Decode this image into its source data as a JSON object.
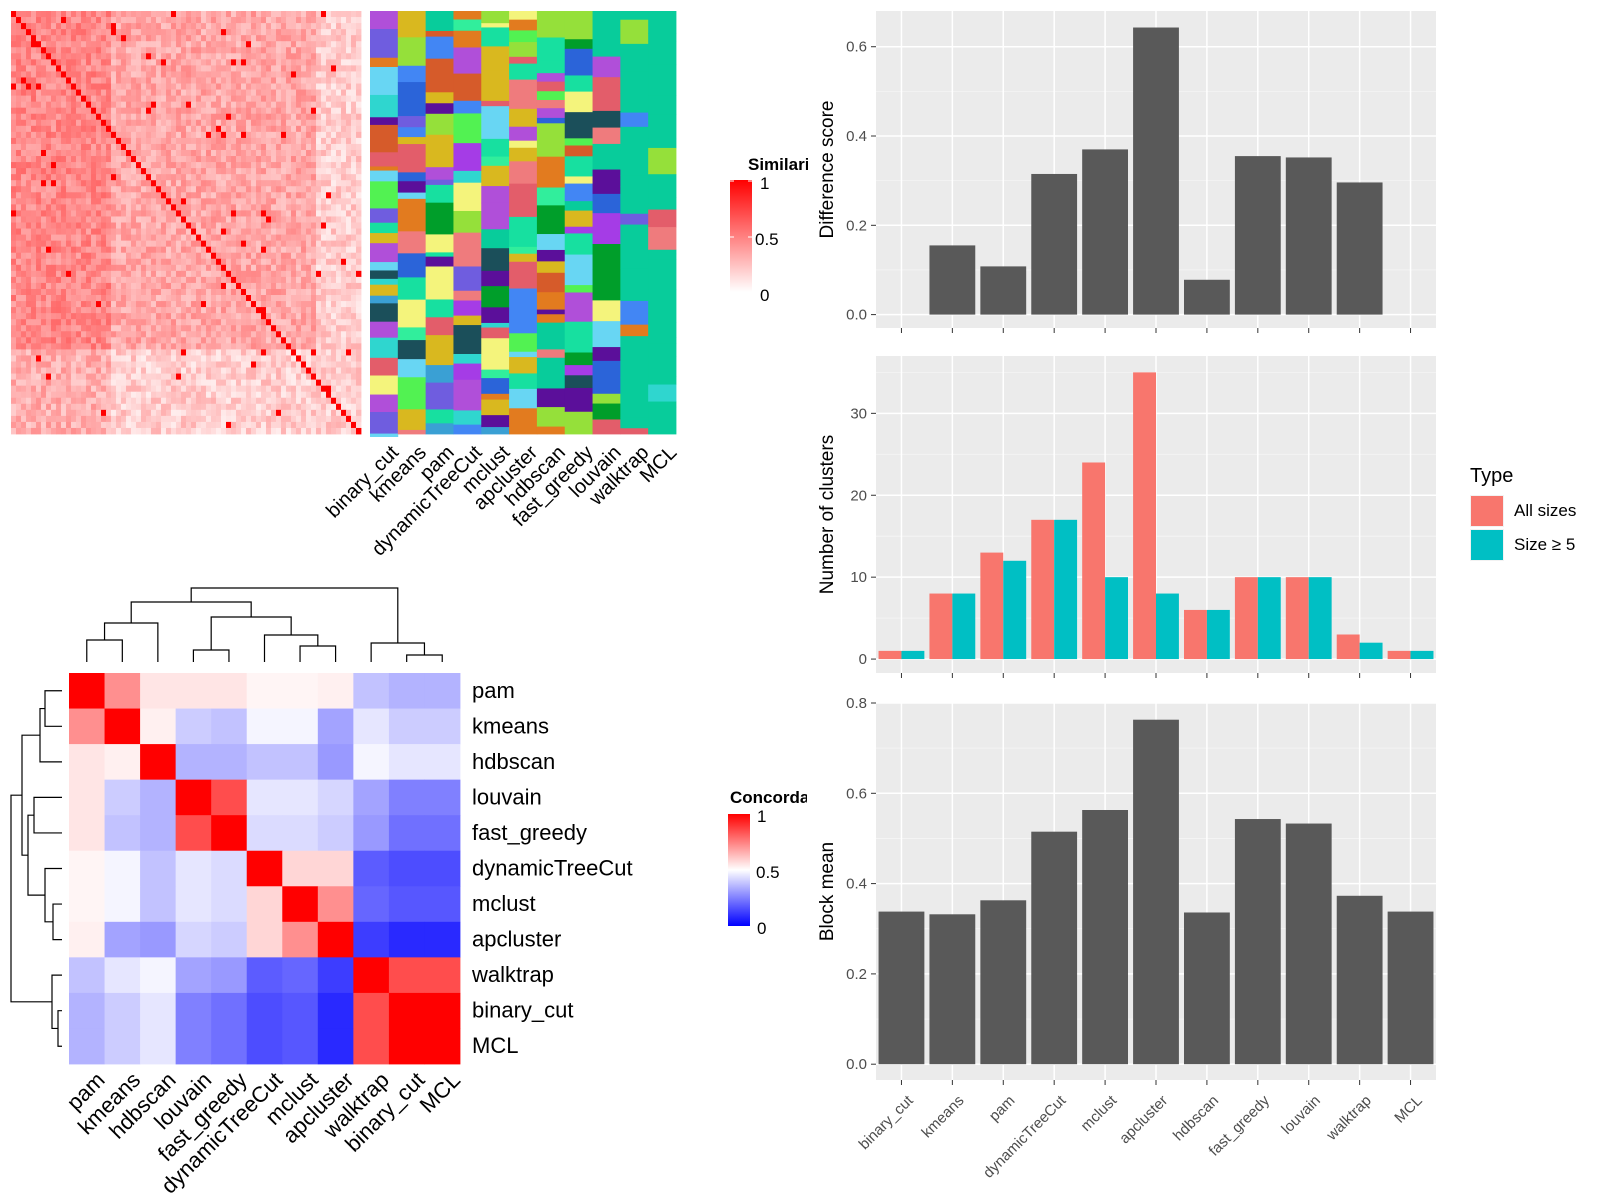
{
  "similarity_heatmap": {
    "legend_title": "Similarity",
    "legend_ticks": [
      "1",
      "0.5",
      "0"
    ],
    "low_color": "#ffffff",
    "high_color": "#ff0000",
    "method_labels": [
      "binary_cut",
      "kmeans",
      "pam",
      "dynamicTreeCut",
      "mclust",
      "apcluster",
      "hdbscan",
      "fast_greedy",
      "louvain",
      "walktrap",
      "MCL"
    ],
    "cluster_palette": [
      "#08cc9b",
      "#009e2a",
      "#4286f4",
      "#2b64d9",
      "#5b0f9a",
      "#a53ce6",
      "#e35d6a",
      "#ef7b7d",
      "#95e03a",
      "#52f252",
      "#17e0a0",
      "#3aa0d4",
      "#b04fd9",
      "#6f5ddf",
      "#e27b1f",
      "#d9b81f",
      "#f4f47c",
      "#1b4f5a",
      "#68d6f3",
      "#d65b2a",
      "#2fd6cf",
      "#31ee9c"
    ]
  },
  "concordance_heatmap": {
    "legend_title": "Concordance",
    "legend_ticks": [
      "1",
      "0.5",
      "0"
    ],
    "low_color": "#0000ff",
    "mid_color": "#ffffff",
    "high_color": "#ff0000",
    "labels": [
      "pam",
      "kmeans",
      "hdbscan",
      "louvain",
      "fast_greedy",
      "dynamicTreeCut",
      "mclust",
      "apcluster",
      "walktrap",
      "binary_cut",
      "MCL"
    ],
    "matrix": [
      [
        1.0,
        0.72,
        0.55,
        0.55,
        0.55,
        0.52,
        0.52,
        0.53,
        0.38,
        0.35,
        0.35
      ],
      [
        0.72,
        1.0,
        0.53,
        0.4,
        0.38,
        0.48,
        0.48,
        0.32,
        0.45,
        0.4,
        0.4
      ],
      [
        0.55,
        0.53,
        1.0,
        0.35,
        0.35,
        0.38,
        0.38,
        0.3,
        0.48,
        0.45,
        0.45
      ],
      [
        0.55,
        0.4,
        0.35,
        1.0,
        0.85,
        0.45,
        0.45,
        0.42,
        0.32,
        0.25,
        0.25
      ],
      [
        0.55,
        0.38,
        0.35,
        0.85,
        1.0,
        0.43,
        0.43,
        0.4,
        0.3,
        0.22,
        0.22
      ],
      [
        0.52,
        0.48,
        0.38,
        0.45,
        0.43,
        1.0,
        0.58,
        0.58,
        0.18,
        0.15,
        0.15
      ],
      [
        0.52,
        0.48,
        0.38,
        0.45,
        0.43,
        0.58,
        1.0,
        0.72,
        0.2,
        0.17,
        0.17
      ],
      [
        0.53,
        0.32,
        0.3,
        0.42,
        0.4,
        0.58,
        0.72,
        1.0,
        0.12,
        0.08,
        0.08
      ],
      [
        0.38,
        0.45,
        0.48,
        0.32,
        0.3,
        0.18,
        0.2,
        0.12,
        1.0,
        0.85,
        0.85
      ],
      [
        0.35,
        0.4,
        0.45,
        0.25,
        0.22,
        0.15,
        0.17,
        0.08,
        0.85,
        1.0,
        1.0
      ],
      [
        0.35,
        0.4,
        0.45,
        0.25,
        0.22,
        0.15,
        0.17,
        0.08,
        0.85,
        1.0,
        1.0
      ]
    ]
  },
  "chart_data": [
    {
      "type": "bar",
      "categories": [
        "binary_cut",
        "kmeans",
        "pam",
        "dynamicTreeCut",
        "mclust",
        "apcluster",
        "hdbscan",
        "fast_greedy",
        "louvain",
        "walktrap",
        "MCL"
      ],
      "values": [
        0.0,
        0.155,
        0.108,
        0.315,
        0.37,
        0.643,
        0.078,
        0.355,
        0.352,
        0.296,
        0.0
      ],
      "ylabel": "Difference score",
      "xlabel": "",
      "ylim": [
        -0.03,
        0.68
      ],
      "yticks": [
        0.0,
        0.2,
        0.4,
        0.6
      ],
      "ytick_labels": [
        "0.0",
        "0.2",
        "0.4",
        "0.6"
      ],
      "bar_color": "#595959",
      "grid": true
    },
    {
      "type": "bar",
      "categories": [
        "binary_cut",
        "kmeans",
        "pam",
        "dynamicTreeCut",
        "mclust",
        "apcluster",
        "hdbscan",
        "fast_greedy",
        "louvain",
        "walktrap",
        "MCL"
      ],
      "series": [
        {
          "name": "All sizes",
          "values": [
            1,
            8,
            13,
            17,
            24,
            35,
            6,
            10,
            10,
            3,
            1
          ],
          "color": "#f8766d"
        },
        {
          "name": "Size ≥ 5",
          "values": [
            1,
            8,
            12,
            17,
            10,
            8,
            6,
            10,
            10,
            2,
            1
          ],
          "color": "#00bfc4"
        }
      ],
      "ylabel": "Number of clusters",
      "xlabel": "",
      "ylim": [
        -1.7,
        37
      ],
      "yticks": [
        0,
        10,
        20,
        30
      ],
      "ytick_labels": [
        "0",
        "10",
        "20",
        "30"
      ],
      "legend_title": "Type",
      "legend_position": "right",
      "grid": true
    },
    {
      "type": "bar",
      "categories": [
        "binary_cut",
        "kmeans",
        "pam",
        "dynamicTreeCut",
        "mclust",
        "apcluster",
        "hdbscan",
        "fast_greedy",
        "louvain",
        "walktrap",
        "MCL"
      ],
      "values": [
        0.338,
        0.332,
        0.363,
        0.515,
        0.563,
        0.763,
        0.336,
        0.543,
        0.533,
        0.373,
        0.338
      ],
      "ylabel": "Block mean",
      "xlabel": "",
      "ylim": [
        -0.035,
        0.8
      ],
      "yticks": [
        0.0,
        0.2,
        0.4,
        0.6,
        0.8
      ],
      "ytick_labels": [
        "0.0",
        "0.2",
        "0.4",
        "0.6",
        "0.8"
      ],
      "bar_color": "#595959",
      "grid": true
    }
  ]
}
